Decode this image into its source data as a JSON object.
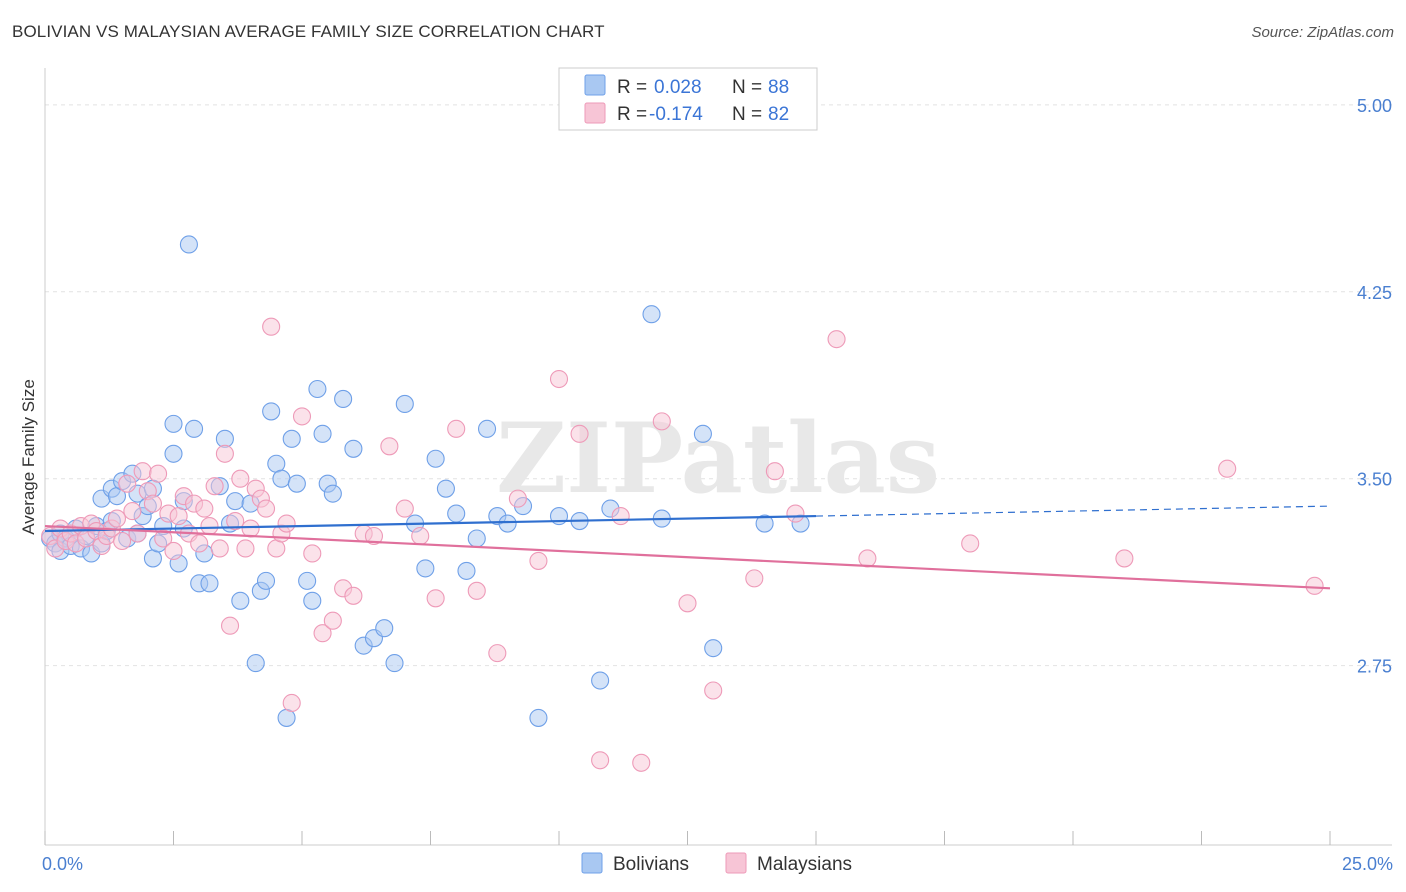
{
  "title": "BOLIVIAN VS MALAYSIAN AVERAGE FAMILY SIZE CORRELATION CHART",
  "source": "Source: ZipAtlas.com",
  "watermark": "ZIPatlas",
  "legend": {
    "rows": [
      {
        "r_label": "R = ",
        "r_value": "0.028",
        "n_label": "N = ",
        "n_value": "88"
      },
      {
        "r_label": "R = ",
        "r_value": "-0.174",
        "n_label": "N = ",
        "n_value": "82"
      }
    ]
  },
  "chart_data": {
    "type": "scatter",
    "title": "BOLIVIAN VS MALAYSIAN AVERAGE FAMILY SIZE CORRELATION CHART",
    "xlabel": "",
    "ylabel": "Average Family Size",
    "xlim": [
      0,
      25
    ],
    "ylim": [
      2.03,
      5.1
    ],
    "x_tick_labels": [
      "0.0%",
      "25.0%"
    ],
    "x_tick_values": [
      0,
      25
    ],
    "y_ticks": [
      2.75,
      3.5,
      4.25,
      5.0
    ],
    "y_tick_labels": [
      "2.75",
      "3.50",
      "4.25",
      "5.00"
    ],
    "grid": true,
    "legend_position": "top-center",
    "series": [
      {
        "name": "Bolivians",
        "color": "#6fa0e8",
        "fill": "#a9c8f2",
        "trend": {
          "x0": 0,
          "y0": 3.29,
          "x1": 15,
          "y1": 3.35,
          "dash_x1": 25,
          "dash_y1": 3.39,
          "color": "#2f6fcf"
        },
        "points": [
          [
            0.1,
            3.26
          ],
          [
            0.2,
            3.24
          ],
          [
            0.3,
            3.28
          ],
          [
            0.3,
            3.21
          ],
          [
            0.4,
            3.26
          ],
          [
            0.5,
            3.23
          ],
          [
            0.6,
            3.3
          ],
          [
            0.7,
            3.22
          ],
          [
            0.8,
            3.27
          ],
          [
            0.9,
            3.2
          ],
          [
            1.0,
            3.31
          ],
          [
            1.1,
            3.24
          ],
          [
            1.1,
            3.42
          ],
          [
            1.2,
            3.29
          ],
          [
            1.3,
            3.33
          ],
          [
            1.3,
            3.46
          ],
          [
            1.4,
            3.43
          ],
          [
            1.5,
            3.49
          ],
          [
            1.6,
            3.26
          ],
          [
            1.7,
            3.52
          ],
          [
            1.8,
            3.28
          ],
          [
            1.8,
            3.44
          ],
          [
            1.9,
            3.35
          ],
          [
            2.0,
            3.39
          ],
          [
            2.1,
            3.46
          ],
          [
            2.1,
            3.18
          ],
          [
            2.2,
            3.24
          ],
          [
            2.3,
            3.31
          ],
          [
            2.5,
            3.6
          ],
          [
            2.5,
            3.72
          ],
          [
            2.6,
            3.16
          ],
          [
            2.7,
            3.41
          ],
          [
            2.7,
            3.3
          ],
          [
            2.8,
            4.44
          ],
          [
            2.9,
            3.7
          ],
          [
            3.0,
            3.08
          ],
          [
            3.1,
            3.2
          ],
          [
            3.2,
            3.08
          ],
          [
            3.4,
            3.47
          ],
          [
            3.5,
            3.66
          ],
          [
            3.6,
            3.32
          ],
          [
            3.7,
            3.41
          ],
          [
            3.8,
            3.01
          ],
          [
            4.0,
            3.4
          ],
          [
            4.1,
            2.76
          ],
          [
            4.2,
            3.05
          ],
          [
            4.3,
            3.09
          ],
          [
            4.4,
            3.77
          ],
          [
            4.5,
            3.56
          ],
          [
            4.6,
            3.5
          ],
          [
            4.7,
            2.54
          ],
          [
            4.8,
            3.66
          ],
          [
            4.9,
            3.48
          ],
          [
            5.1,
            3.09
          ],
          [
            5.2,
            3.01
          ],
          [
            5.3,
            3.86
          ],
          [
            5.4,
            3.68
          ],
          [
            5.5,
            3.48
          ],
          [
            5.6,
            3.44
          ],
          [
            5.8,
            3.82
          ],
          [
            6.0,
            3.62
          ],
          [
            6.2,
            2.83
          ],
          [
            6.4,
            2.86
          ],
          [
            6.6,
            2.9
          ],
          [
            6.8,
            2.76
          ],
          [
            7.0,
            3.8
          ],
          [
            7.2,
            3.32
          ],
          [
            7.4,
            3.14
          ],
          [
            7.6,
            3.58
          ],
          [
            7.8,
            3.46
          ],
          [
            8.0,
            3.36
          ],
          [
            8.2,
            3.13
          ],
          [
            8.4,
            3.26
          ],
          [
            8.6,
            3.7
          ],
          [
            8.8,
            3.35
          ],
          [
            9.0,
            3.32
          ],
          [
            9.3,
            3.39
          ],
          [
            9.6,
            2.54
          ],
          [
            10.0,
            3.35
          ],
          [
            10.4,
            3.33
          ],
          [
            11.0,
            3.38
          ],
          [
            12.0,
            3.34
          ],
          [
            12.8,
            3.68
          ],
          [
            13.0,
            2.82
          ],
          [
            14.0,
            3.32
          ],
          [
            14.7,
            3.32
          ],
          [
            11.8,
            4.16
          ],
          [
            10.8,
            2.69
          ]
        ]
      },
      {
        "name": "Malaysians",
        "color": "#ee9ab8",
        "fill": "#f7c5d6",
        "trend": {
          "x0": 0,
          "y0": 3.31,
          "x1": 25,
          "y1": 3.06,
          "color": "#e0709c"
        },
        "points": [
          [
            0.1,
            3.27
          ],
          [
            0.2,
            3.22
          ],
          [
            0.3,
            3.3
          ],
          [
            0.4,
            3.25
          ],
          [
            0.5,
            3.28
          ],
          [
            0.6,
            3.24
          ],
          [
            0.7,
            3.31
          ],
          [
            0.8,
            3.26
          ],
          [
            0.9,
            3.32
          ],
          [
            1.0,
            3.29
          ],
          [
            1.1,
            3.23
          ],
          [
            1.2,
            3.27
          ],
          [
            1.3,
            3.3
          ],
          [
            1.4,
            3.34
          ],
          [
            1.5,
            3.25
          ],
          [
            1.6,
            3.48
          ],
          [
            1.7,
            3.37
          ],
          [
            1.8,
            3.28
          ],
          [
            1.9,
            3.53
          ],
          [
            2.0,
            3.45
          ],
          [
            2.1,
            3.4
          ],
          [
            2.2,
            3.52
          ],
          [
            2.3,
            3.26
          ],
          [
            2.4,
            3.36
          ],
          [
            2.5,
            3.21
          ],
          [
            2.6,
            3.35
          ],
          [
            2.7,
            3.43
          ],
          [
            2.8,
            3.28
          ],
          [
            2.9,
            3.4
          ],
          [
            3.0,
            3.24
          ],
          [
            3.1,
            3.38
          ],
          [
            3.2,
            3.31
          ],
          [
            3.3,
            3.47
          ],
          [
            3.4,
            3.22
          ],
          [
            3.5,
            3.6
          ],
          [
            3.6,
            2.91
          ],
          [
            3.7,
            3.33
          ],
          [
            3.8,
            3.5
          ],
          [
            3.9,
            3.22
          ],
          [
            4.0,
            3.3
          ],
          [
            4.1,
            3.46
          ],
          [
            4.2,
            3.42
          ],
          [
            4.3,
            3.38
          ],
          [
            4.4,
            4.11
          ],
          [
            4.5,
            3.22
          ],
          [
            4.6,
            3.28
          ],
          [
            4.7,
            3.32
          ],
          [
            4.8,
            2.6
          ],
          [
            5.0,
            3.75
          ],
          [
            5.2,
            3.2
          ],
          [
            5.4,
            2.88
          ],
          [
            5.6,
            2.93
          ],
          [
            5.8,
            3.06
          ],
          [
            6.0,
            3.03
          ],
          [
            6.2,
            3.28
          ],
          [
            6.4,
            3.27
          ],
          [
            6.7,
            3.63
          ],
          [
            7.0,
            3.38
          ],
          [
            7.3,
            3.27
          ],
          [
            7.6,
            3.02
          ],
          [
            8.0,
            3.7
          ],
          [
            8.4,
            3.05
          ],
          [
            8.8,
            2.8
          ],
          [
            9.2,
            3.42
          ],
          [
            9.6,
            3.17
          ],
          [
            10.0,
            3.9
          ],
          [
            10.4,
            3.68
          ],
          [
            10.8,
            2.37
          ],
          [
            11.2,
            3.35
          ],
          [
            11.6,
            2.36
          ],
          [
            12.0,
            3.73
          ],
          [
            12.5,
            3.0
          ],
          [
            13.0,
            2.65
          ],
          [
            13.8,
            3.1
          ],
          [
            14.2,
            3.53
          ],
          [
            14.6,
            3.36
          ],
          [
            15.4,
            4.06
          ],
          [
            16.0,
            3.18
          ],
          [
            18.0,
            3.24
          ],
          [
            21.0,
            3.18
          ],
          [
            23.0,
            3.54
          ],
          [
            24.7,
            3.07
          ]
        ]
      }
    ]
  }
}
